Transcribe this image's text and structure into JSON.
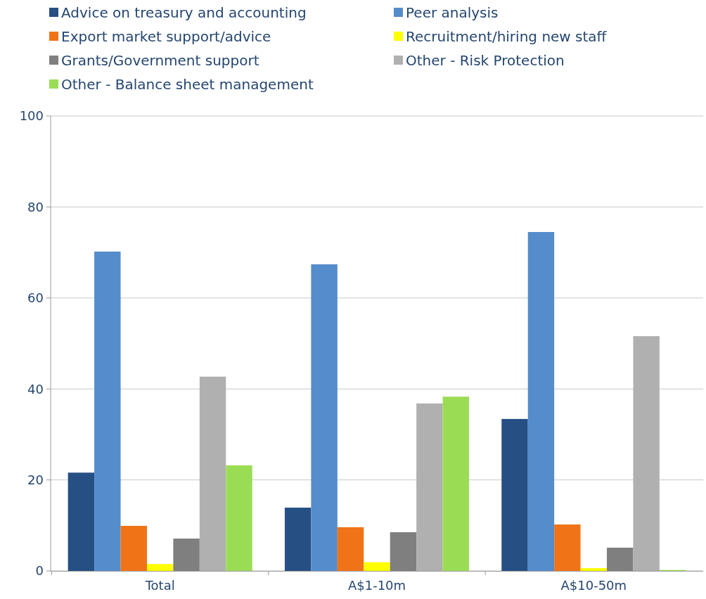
{
  "chart_data": {
    "type": "bar",
    "categories": [
      "Total",
      "A$1-10m",
      "A$10-50m"
    ],
    "series": [
      {
        "name": "Advice on treasury and accounting",
        "color": "#264f84",
        "values": [
          21.6,
          13.9,
          33.4
        ]
      },
      {
        "name": "Peer analysis",
        "color": "#558ccb",
        "values": [
          70.2,
          67.4,
          74.5
        ]
      },
      {
        "name": "Export market support/advice",
        "color": "#f07417",
        "values": [
          9.9,
          9.6,
          10.2
        ]
      },
      {
        "name": "Recruitment/hiring new staff",
        "color": "#ffff00",
        "values": [
          1.5,
          1.9,
          0.6
        ]
      },
      {
        "name": "Grants/Government support",
        "color": "#7f7f7f",
        "values": [
          7.1,
          8.5,
          5.1
        ]
      },
      {
        "name": "Other - Risk Protection",
        "color": "#b0b0b0",
        "values": [
          42.7,
          36.8,
          51.6
        ]
      },
      {
        "name": "Other - Balance sheet management",
        "color": "#9bdc55",
        "values": [
          23.2,
          38.3,
          0.2
        ]
      }
    ],
    "ylim": [
      0,
      100
    ],
    "yticks": [
      0,
      20,
      40,
      60,
      80,
      100
    ],
    "grid": "y",
    "legend": "top"
  }
}
